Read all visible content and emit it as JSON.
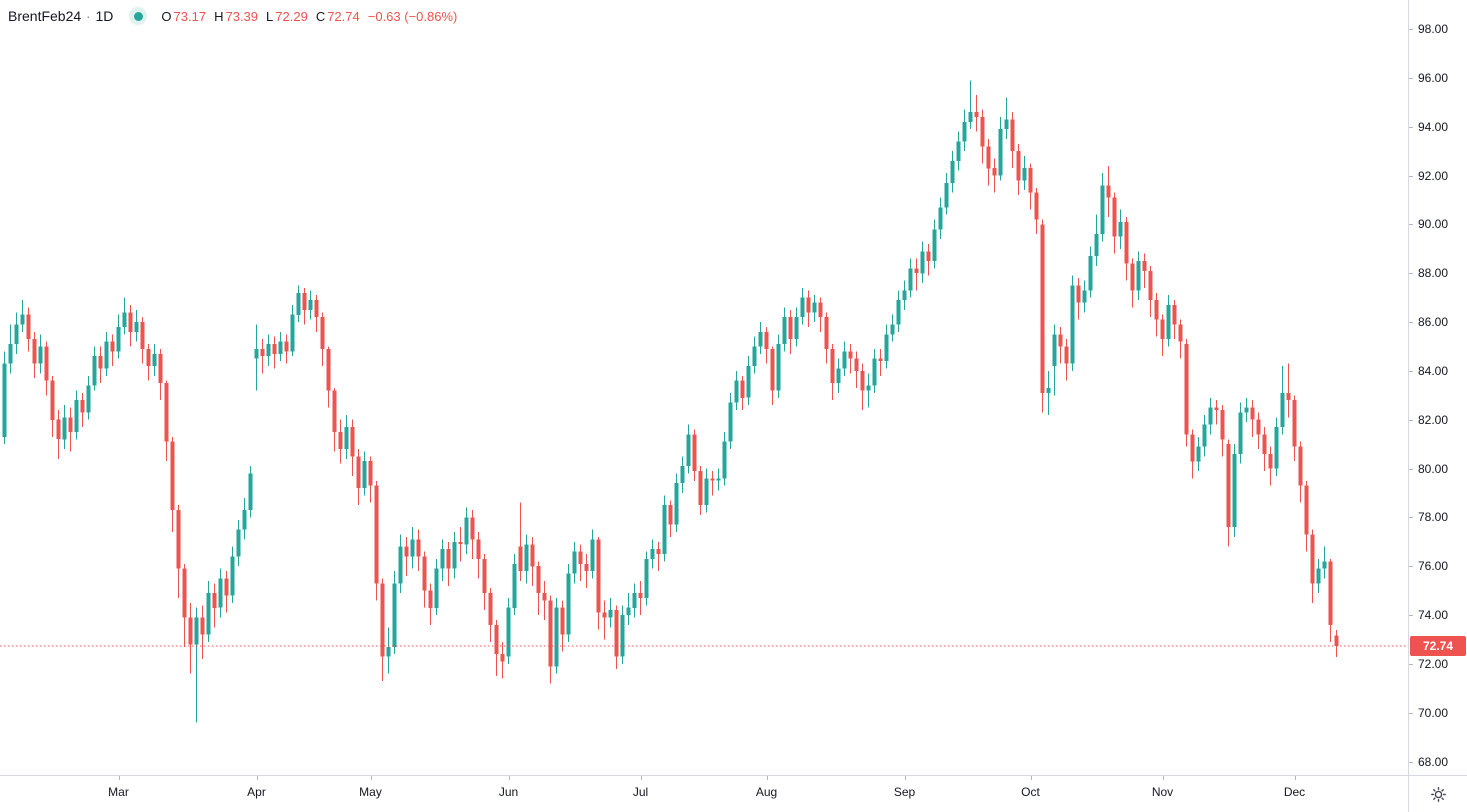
{
  "legend": {
    "symbol": "BrentFeb24",
    "separator": "·",
    "interval": "1D",
    "ohlc": {
      "o_label": "O",
      "o": "73.17",
      "h_label": "H",
      "h": "73.39",
      "l_label": "L",
      "l": "72.29",
      "c_label": "C",
      "c": "72.74"
    },
    "change": "−0.63 (−0.86%)"
  },
  "price_axis": {
    "badge": "72.74"
  },
  "icons": {
    "settings": "sun-gear"
  },
  "colors": {
    "up": "#26a69a",
    "down": "#ef5350",
    "text": "#131722",
    "muted": "#787b86",
    "axis_line": "#d6d9e0",
    "badge_text": "#ffffff",
    "background": "#ffffff"
  },
  "chart_data": {
    "type": "candlestick",
    "title": "BrentFeb24 1D candlestick chart",
    "xlabel": "",
    "ylabel": "",
    "grid": false,
    "legend_position": "top-left",
    "last_price": 72.74,
    "y_axis": {
      "ylim": [
        67.45,
        99.19
      ],
      "tick_step": 2,
      "tick_labels": [
        "98.00",
        "96.00",
        "94.00",
        "92.00",
        "90.00",
        "88.00",
        "86.00",
        "84.00",
        "82.00",
        "80.00",
        "78.00",
        "76.00",
        "74.00",
        "72.00",
        "70.00",
        "68.00"
      ]
    },
    "x_axis": {
      "tick_labels": [
        "Mar",
        "Apr",
        "May",
        "Jun",
        "Jul",
        "Aug",
        "Sep",
        "Oct",
        "Nov",
        "Dec"
      ],
      "tick_indices": [
        19,
        42,
        61,
        84,
        106,
        127,
        150,
        171,
        193,
        215
      ]
    },
    "candles": [
      [
        81.3,
        84.8,
        81.0,
        84.3
      ],
      [
        84.3,
        85.9,
        83.9,
        85.1
      ],
      [
        85.1,
        86.4,
        84.7,
        85.9
      ],
      [
        85.9,
        86.9,
        85.6,
        86.3
      ],
      [
        86.3,
        86.6,
        84.8,
        85.3
      ],
      [
        85.3,
        85.6,
        83.7,
        84.3
      ],
      [
        84.3,
        85.5,
        83.9,
        85.0
      ],
      [
        85.0,
        85.2,
        83.0,
        83.6
      ],
      [
        83.6,
        83.8,
        81.3,
        82.0
      ],
      [
        82.0,
        82.4,
        80.4,
        81.2
      ],
      [
        81.2,
        82.6,
        80.8,
        82.1
      ],
      [
        82.1,
        82.5,
        80.7,
        81.5
      ],
      [
        81.5,
        83.2,
        81.2,
        82.8
      ],
      [
        82.8,
        83.1,
        81.7,
        82.3
      ],
      [
        82.3,
        83.8,
        82.0,
        83.4
      ],
      [
        83.4,
        85.0,
        83.2,
        84.6
      ],
      [
        84.6,
        85.0,
        83.5,
        84.1
      ],
      [
        84.1,
        85.6,
        83.8,
        85.2
      ],
      [
        85.2,
        85.5,
        84.2,
        84.8
      ],
      [
        84.8,
        86.3,
        84.5,
        85.8
      ],
      [
        85.8,
        87.0,
        85.5,
        86.4
      ],
      [
        86.4,
        86.7,
        85.0,
        85.6
      ],
      [
        85.6,
        86.5,
        85.2,
        86.0
      ],
      [
        86.0,
        86.2,
        84.3,
        84.9
      ],
      [
        84.9,
        85.1,
        83.6,
        84.2
      ],
      [
        84.2,
        85.1,
        83.8,
        84.7
      ],
      [
        84.7,
        84.9,
        82.8,
        83.5
      ],
      [
        83.5,
        83.6,
        80.3,
        81.1
      ],
      [
        81.1,
        81.3,
        77.4,
        78.3
      ],
      [
        78.3,
        78.5,
        74.7,
        75.9
      ],
      [
        75.9,
        76.1,
        72.7,
        73.9
      ],
      [
        73.9,
        74.5,
        71.6,
        72.8
      ],
      [
        72.8,
        74.3,
        69.6,
        73.9
      ],
      [
        73.9,
        74.4,
        72.2,
        73.2
      ],
      [
        73.2,
        75.4,
        72.9,
        74.9
      ],
      [
        74.9,
        75.3,
        73.5,
        74.3
      ],
      [
        74.3,
        75.9,
        73.9,
        75.5
      ],
      [
        75.5,
        75.8,
        74.1,
        74.8
      ],
      [
        74.8,
        76.8,
        74.5,
        76.4
      ],
      [
        76.4,
        77.9,
        76.0,
        77.5
      ],
      [
        77.5,
        78.8,
        77.1,
        78.3
      ],
      [
        78.3,
        80.1,
        78.0,
        79.8
      ],
      [
        84.5,
        85.9,
        83.2,
        84.9
      ],
      [
        84.9,
        85.3,
        83.9,
        84.6
      ],
      [
        84.6,
        85.5,
        84.2,
        85.1
      ],
      [
        85.1,
        85.4,
        84.1,
        84.7
      ],
      [
        84.7,
        85.6,
        84.4,
        85.2
      ],
      [
        85.2,
        85.5,
        84.3,
        84.8
      ],
      [
        84.8,
        86.7,
        84.6,
        86.3
      ],
      [
        86.3,
        87.5,
        86.0,
        87.2
      ],
      [
        87.2,
        87.4,
        85.9,
        86.5
      ],
      [
        86.5,
        87.3,
        86.1,
        86.9
      ],
      [
        86.9,
        87.1,
        85.6,
        86.2
      ],
      [
        86.2,
        86.4,
        84.2,
        84.9
      ],
      [
        84.9,
        85.0,
        82.5,
        83.2
      ],
      [
        83.2,
        83.3,
        80.7,
        81.5
      ],
      [
        81.5,
        82.0,
        80.2,
        80.8
      ],
      [
        80.8,
        82.2,
        80.4,
        81.7
      ],
      [
        81.7,
        82.0,
        79.7,
        80.5
      ],
      [
        80.5,
        80.8,
        78.5,
        79.2
      ],
      [
        79.2,
        80.7,
        78.9,
        80.3
      ],
      [
        80.3,
        80.5,
        78.6,
        79.3
      ],
      [
        79.3,
        79.5,
        74.6,
        75.3
      ],
      [
        75.3,
        75.5,
        71.3,
        72.3
      ],
      [
        72.3,
        73.5,
        71.6,
        72.7
      ],
      [
        72.7,
        75.8,
        72.4,
        75.3
      ],
      [
        75.3,
        77.3,
        74.9,
        76.8
      ],
      [
        76.8,
        77.2,
        75.6,
        76.4
      ],
      [
        76.4,
        77.6,
        75.9,
        77.1
      ],
      [
        77.1,
        77.5,
        75.8,
        76.4
      ],
      [
        76.4,
        76.6,
        74.3,
        75.0
      ],
      [
        75.0,
        75.3,
        73.6,
        74.3
      ],
      [
        74.3,
        76.3,
        74.0,
        75.9
      ],
      [
        75.9,
        77.1,
        75.4,
        76.7
      ],
      [
        76.7,
        77.0,
        75.2,
        75.9
      ],
      [
        75.9,
        77.4,
        75.5,
        77.0
      ],
      [
        77.0,
        77.6,
        76.2,
        76.9
      ],
      [
        76.9,
        78.4,
        76.5,
        78.0
      ],
      [
        78.0,
        78.3,
        76.3,
        77.1
      ],
      [
        77.1,
        77.4,
        75.5,
        76.3
      ],
      [
        76.3,
        76.5,
        74.2,
        74.9
      ],
      [
        74.9,
        75.1,
        72.9,
        73.6
      ],
      [
        73.6,
        73.8,
        71.5,
        72.4
      ],
      [
        72.4,
        72.9,
        71.4,
        72.1
      ],
      [
        72.3,
        74.7,
        72.0,
        74.3
      ],
      [
        74.3,
        76.5,
        74.0,
        76.1
      ],
      [
        76.8,
        78.6,
        75.4,
        75.8
      ],
      [
        75.8,
        77.3,
        75.3,
        76.9
      ],
      [
        76.9,
        77.2,
        75.2,
        76.0
      ],
      [
        76.0,
        76.2,
        74.0,
        74.9
      ],
      [
        74.9,
        75.4,
        73.8,
        74.6
      ],
      [
        74.6,
        74.8,
        71.2,
        71.9
      ],
      [
        71.9,
        74.7,
        71.6,
        74.3
      ],
      [
        74.3,
        74.6,
        72.5,
        73.2
      ],
      [
        73.2,
        76.1,
        72.9,
        75.7
      ],
      [
        75.7,
        77.0,
        75.3,
        76.6
      ],
      [
        76.6,
        76.9,
        75.4,
        76.1
      ],
      [
        76.1,
        76.5,
        75.1,
        75.8
      ],
      [
        75.8,
        77.5,
        75.5,
        77.1
      ],
      [
        77.1,
        77.2,
        73.4,
        74.1
      ],
      [
        74.1,
        74.6,
        73.0,
        73.9
      ],
      [
        73.9,
        74.7,
        73.5,
        74.2
      ],
      [
        74.2,
        74.4,
        71.8,
        72.3
      ],
      [
        72.3,
        74.4,
        72.0,
        74.0
      ],
      [
        74.0,
        74.9,
        73.6,
        74.3
      ],
      [
        74.3,
        75.3,
        73.9,
        74.9
      ],
      [
        74.9,
        75.4,
        74.0,
        74.7
      ],
      [
        74.7,
        76.6,
        74.4,
        76.3
      ],
      [
        76.3,
        77.1,
        75.9,
        76.7
      ],
      [
        76.7,
        77.0,
        75.8,
        76.5
      ],
      [
        76.5,
        78.9,
        76.2,
        78.5
      ],
      [
        78.5,
        78.7,
        77.2,
        77.7
      ],
      [
        77.7,
        79.8,
        77.4,
        79.4
      ],
      [
        79.4,
        80.5,
        79.0,
        80.1
      ],
      [
        80.1,
        81.8,
        79.8,
        81.4
      ],
      [
        81.4,
        81.6,
        79.5,
        79.9
      ],
      [
        79.9,
        80.1,
        78.1,
        78.5
      ],
      [
        78.5,
        80.0,
        78.2,
        79.6
      ],
      [
        79.6,
        79.9,
        78.9,
        79.5
      ],
      [
        79.5,
        80.0,
        79.1,
        79.6
      ],
      [
        79.6,
        81.5,
        79.3,
        81.1
      ],
      [
        81.1,
        83.1,
        80.8,
        82.7
      ],
      [
        82.7,
        84.0,
        82.4,
        83.6
      ],
      [
        83.6,
        83.8,
        82.4,
        82.9
      ],
      [
        82.9,
        84.6,
        82.6,
        84.2
      ],
      [
        84.2,
        85.4,
        83.9,
        85.0
      ],
      [
        85.0,
        86.0,
        84.7,
        85.6
      ],
      [
        85.6,
        85.8,
        84.3,
        84.9
      ],
      [
        84.9,
        85.0,
        82.6,
        83.2
      ],
      [
        83.2,
        85.5,
        82.9,
        85.1
      ],
      [
        85.1,
        86.6,
        84.8,
        86.2
      ],
      [
        86.2,
        86.5,
        84.7,
        85.3
      ],
      [
        85.3,
        86.6,
        85.0,
        86.2
      ],
      [
        86.2,
        87.4,
        85.9,
        87.0
      ],
      [
        87.0,
        87.3,
        85.8,
        86.4
      ],
      [
        86.4,
        87.1,
        86.0,
        86.8
      ],
      [
        86.8,
        87.0,
        85.6,
        86.2
      ],
      [
        86.2,
        86.4,
        84.3,
        84.9
      ],
      [
        84.9,
        85.1,
        82.8,
        83.5
      ],
      [
        83.5,
        84.5,
        83.1,
        84.1
      ],
      [
        84.1,
        85.2,
        83.8,
        84.8
      ],
      [
        84.8,
        85.1,
        83.9,
        84.5
      ],
      [
        84.5,
        84.8,
        83.3,
        84.0
      ],
      [
        84.0,
        84.3,
        82.4,
        83.2
      ],
      [
        83.2,
        83.9,
        82.5,
        83.4
      ],
      [
        83.4,
        84.9,
        83.1,
        84.5
      ],
      [
        84.5,
        84.9,
        83.8,
        84.4
      ],
      [
        84.4,
        85.9,
        84.1,
        85.5
      ],
      [
        85.5,
        86.3,
        85.2,
        85.9
      ],
      [
        85.9,
        87.3,
        85.6,
        86.9
      ],
      [
        86.9,
        87.7,
        86.5,
        87.3
      ],
      [
        87.3,
        88.6,
        87.0,
        88.2
      ],
      [
        88.2,
        88.6,
        87.3,
        88.0
      ],
      [
        88.0,
        89.3,
        87.6,
        88.9
      ],
      [
        88.9,
        89.2,
        87.9,
        88.5
      ],
      [
        88.5,
        90.2,
        88.2,
        89.8
      ],
      [
        89.8,
        91.1,
        89.4,
        90.7
      ],
      [
        90.7,
        92.1,
        90.4,
        91.7
      ],
      [
        91.7,
        93.0,
        91.3,
        92.6
      ],
      [
        92.6,
        93.8,
        92.2,
        93.4
      ],
      [
        93.4,
        94.7,
        93.0,
        94.2
      ],
      [
        94.2,
        95.9,
        93.9,
        94.6
      ],
      [
        94.6,
        95.3,
        93.8,
        94.4
      ],
      [
        94.4,
        94.7,
        92.5,
        93.2
      ],
      [
        93.2,
        93.5,
        91.6,
        92.3
      ],
      [
        92.3,
        92.7,
        91.3,
        92.0
      ],
      [
        92.0,
        94.4,
        91.8,
        93.9
      ],
      [
        93.9,
        95.2,
        93.5,
        94.3
      ],
      [
        94.3,
        94.6,
        92.3,
        93.0
      ],
      [
        93.0,
        93.3,
        91.2,
        91.8
      ],
      [
        91.8,
        92.8,
        91.4,
        92.3
      ],
      [
        92.3,
        92.5,
        90.6,
        91.3
      ],
      [
        91.3,
        91.5,
        89.6,
        90.2
      ],
      [
        90.0,
        90.2,
        82.3,
        83.1
      ],
      [
        83.1,
        84.0,
        82.2,
        83.3
      ],
      [
        84.2,
        85.9,
        83.0,
        85.5
      ],
      [
        85.5,
        85.8,
        84.3,
        85.0
      ],
      [
        85.0,
        85.3,
        83.6,
        84.3
      ],
      [
        84.3,
        87.9,
        84.0,
        87.5
      ],
      [
        87.5,
        87.8,
        86.1,
        86.8
      ],
      [
        86.8,
        87.7,
        86.4,
        87.3
      ],
      [
        87.3,
        89.1,
        87.0,
        88.7
      ],
      [
        88.7,
        90.4,
        88.3,
        89.6
      ],
      [
        89.6,
        92.1,
        89.3,
        91.6
      ],
      [
        91.6,
        92.4,
        90.3,
        91.1
      ],
      [
        91.1,
        91.3,
        88.8,
        89.5
      ],
      [
        89.5,
        90.6,
        89.0,
        90.1
      ],
      [
        90.1,
        90.3,
        87.7,
        88.4
      ],
      [
        88.4,
        88.6,
        86.6,
        87.3
      ],
      [
        87.3,
        88.9,
        86.9,
        88.5
      ],
      [
        88.5,
        88.8,
        87.4,
        88.1
      ],
      [
        88.1,
        88.3,
        86.2,
        86.9
      ],
      [
        86.9,
        87.2,
        85.4,
        86.1
      ],
      [
        86.1,
        86.3,
        84.6,
        85.3
      ],
      [
        85.3,
        87.1,
        85.0,
        86.7
      ],
      [
        86.7,
        86.9,
        85.3,
        85.9
      ],
      [
        85.9,
        86.1,
        84.5,
        85.2
      ],
      [
        85.1,
        85.3,
        80.9,
        81.4
      ],
      [
        81.4,
        81.6,
        79.6,
        80.3
      ],
      [
        80.3,
        81.3,
        79.9,
        80.9
      ],
      [
        80.9,
        82.2,
        80.5,
        81.8
      ],
      [
        81.8,
        82.9,
        81.4,
        82.5
      ],
      [
        82.5,
        82.8,
        81.8,
        82.4
      ],
      [
        82.4,
        82.6,
        80.5,
        81.2
      ],
      [
        81.0,
        81.2,
        76.8,
        77.6
      ],
      [
        77.6,
        81.0,
        77.2,
        80.6
      ],
      [
        80.6,
        82.7,
        80.2,
        82.3
      ],
      [
        82.3,
        82.9,
        81.9,
        82.5
      ],
      [
        82.5,
        82.8,
        81.3,
        82.0
      ],
      [
        82.0,
        82.3,
        80.8,
        81.4
      ],
      [
        81.4,
        81.7,
        79.9,
        80.6
      ],
      [
        80.6,
        80.9,
        79.3,
        80.0
      ],
      [
        80.0,
        82.1,
        79.7,
        81.7
      ],
      [
        81.7,
        84.2,
        81.4,
        83.1
      ],
      [
        83.1,
        84.3,
        82.1,
        82.8
      ],
      [
        82.8,
        83.0,
        80.3,
        80.9
      ],
      [
        80.9,
        81.1,
        78.6,
        79.3
      ],
      [
        79.3,
        79.5,
        76.6,
        77.3
      ],
      [
        77.3,
        77.5,
        74.5,
        75.3
      ],
      [
        75.3,
        76.3,
        74.9,
        75.9
      ],
      [
        75.9,
        76.8,
        75.5,
        76.2
      ],
      [
        76.2,
        76.3,
        72.9,
        73.6
      ],
      [
        73.17,
        73.39,
        72.29,
        72.74
      ]
    ]
  }
}
